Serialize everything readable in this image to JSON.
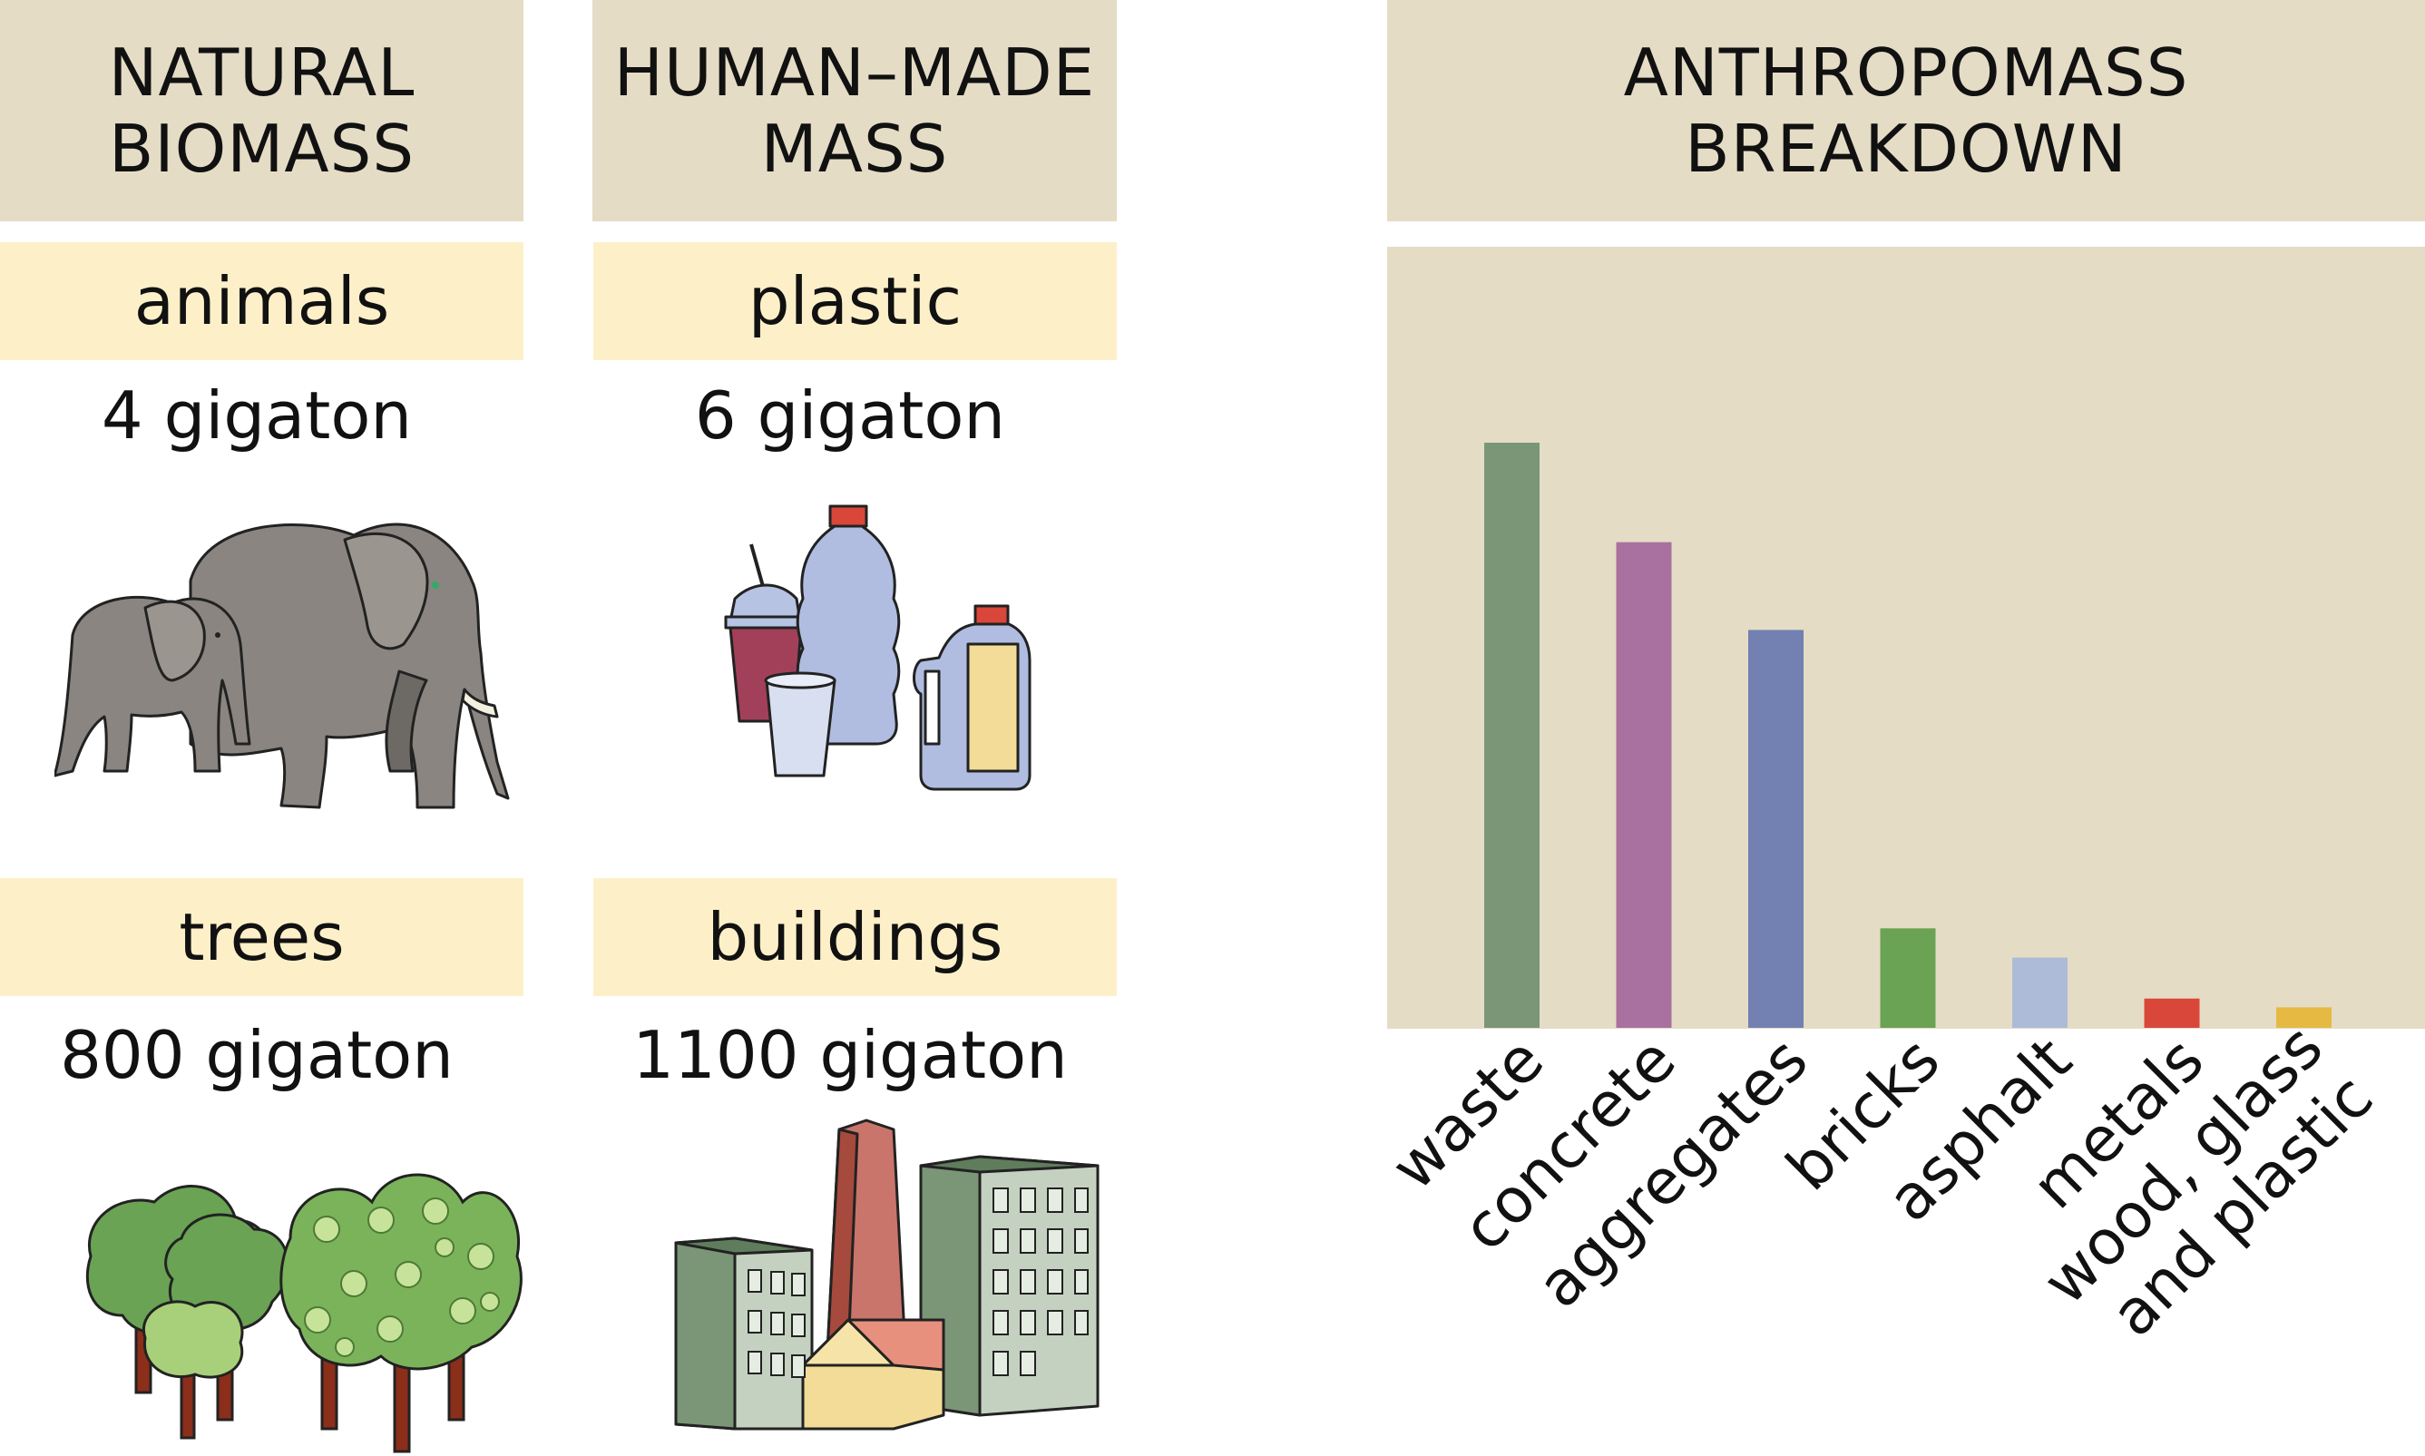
{
  "natural": {
    "title_line1": "NATURAL",
    "title_line2": "BIOMASS",
    "items": [
      {
        "label": "animals",
        "value": "4 gigaton",
        "icon": "elephants-icon"
      },
      {
        "label": "trees",
        "value": "800 gigaton",
        "icon": "trees-icon"
      }
    ]
  },
  "human": {
    "title_line1": "HUMAN–MADE",
    "title_line2": "MASS",
    "items": [
      {
        "label": "plastic",
        "value": "6 gigaton",
        "icon": "plastic-bottles-icon"
      },
      {
        "label": "buildings",
        "value": "1100 gigaton",
        "icon": "buildings-icon"
      }
    ]
  },
  "breakdown": {
    "title_line1": "ANTHROPOMASS",
    "title_line2": "BREAKDOWN"
  },
  "chart_data": {
    "type": "bar",
    "title": "ANTHROPOMASS BREAKDOWN",
    "categories": [
      "waste",
      "concrete",
      "aggregates",
      "bricks",
      "asphalt",
      "metals",
      "wood, glass\nand plastic"
    ],
    "values": [
      100,
      83,
      68,
      17,
      12,
      5,
      3.5
    ],
    "ylim": [
      0,
      120
    ],
    "colors": [
      "#7a9677",
      "#a9719f",
      "#7281b1",
      "#6aa353",
      "#adbbd9",
      "#d9473a",
      "#e5b942"
    ],
    "grid": false,
    "legend": "none"
  }
}
